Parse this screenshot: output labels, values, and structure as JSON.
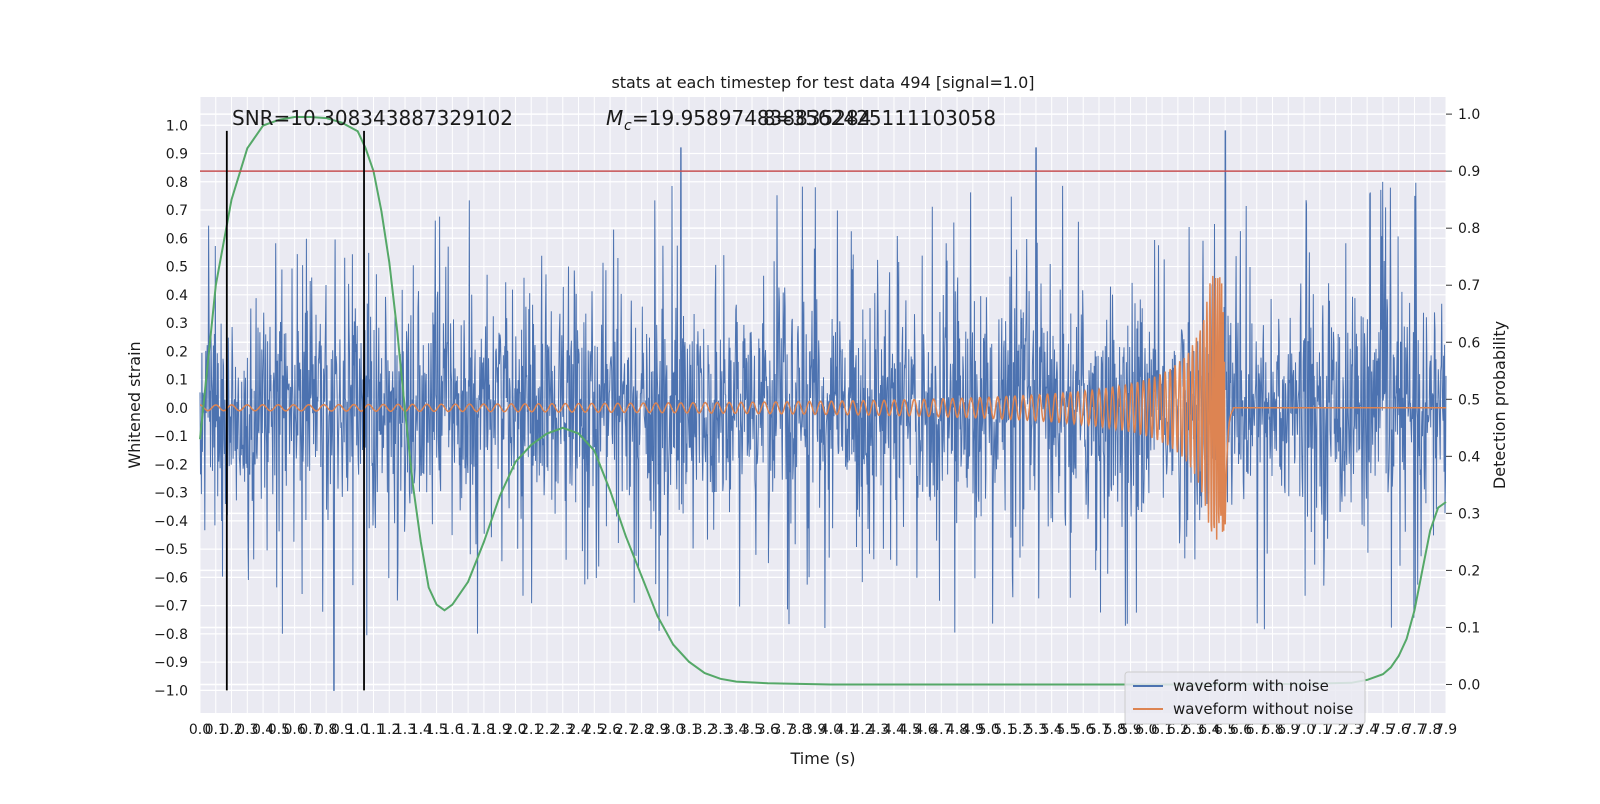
{
  "chart_data": {
    "type": "line",
    "title": "stats at each timestep for test data 494 [signal=1.0]",
    "xlabel": "Time (s)",
    "ylabel": "Whitened strain",
    "y2label": "Detection probability",
    "xlim": [
      0.0,
      7.9
    ],
    "ylim": [
      -1.08,
      1.1
    ],
    "y2lim": [
      -0.05,
      1.03
    ],
    "xticks": [
      "0.0",
      "0.1",
      "0.2",
      "0.3",
      "0.4",
      "0.5",
      "0.6",
      "0.7",
      "0.8",
      "0.9",
      "1.0",
      "1.1",
      "1.2",
      "1.3",
      "1.4",
      "1.5",
      "1.6",
      "1.7",
      "1.8",
      "1.9",
      "2.0",
      "2.1",
      "2.2",
      "2.3",
      "2.4",
      "2.5",
      "2.6",
      "2.7",
      "2.8",
      "2.9",
      "3.0",
      "3.1",
      "3.2",
      "3.3",
      "3.4",
      "3.5",
      "3.6",
      "3.7",
      "3.8",
      "3.9",
      "4.0",
      "4.1",
      "4.2",
      "4.3",
      "4.4",
      "4.5",
      "4.6",
      "4.7",
      "4.8",
      "4.9",
      "5.0",
      "5.1",
      "5.2",
      "5.3",
      "5.4",
      "5.5",
      "5.6",
      "5.7",
      "5.8",
      "5.9",
      "6.0",
      "6.1",
      "6.2",
      "6.3",
      "6.4",
      "6.5",
      "6.6",
      "6.7",
      "6.8",
      "6.9",
      "7.0",
      "7.1",
      "7.2",
      "7.3",
      "7.4",
      "7.5",
      "7.6",
      "7.7",
      "7.8",
      "7.9"
    ],
    "yticks": [
      "1.0",
      "0.9",
      "0.8",
      "0.7",
      "0.6",
      "0.5",
      "0.4",
      "0.3",
      "0.2",
      "0.1",
      "0.0",
      "−0.1",
      "−0.2",
      "−0.3",
      "−0.4",
      "−0.5",
      "−0.6",
      "−0.7",
      "−0.8",
      "−0.9",
      "−1.0"
    ],
    "yticks_values": [
      1.0,
      0.9,
      0.8,
      0.7,
      0.6,
      0.5,
      0.4,
      0.3,
      0.2,
      0.1,
      0.0,
      -0.1,
      -0.2,
      -0.3,
      -0.4,
      -0.5,
      -0.6,
      -0.7,
      -0.8,
      -0.9,
      -1.0
    ],
    "y2ticks": [
      "1.0",
      "0.9",
      "0.8",
      "0.7",
      "0.6",
      "0.5",
      "0.4",
      "0.3",
      "0.2",
      "0.1",
      "0.0"
    ],
    "y2ticks_values": [
      1.0,
      0.9,
      0.8,
      0.7,
      0.6,
      0.5,
      0.4,
      0.3,
      0.2,
      0.1,
      0.0
    ],
    "grid": true,
    "legend_position": "bottom-right",
    "legend": [
      {
        "label": "waveform with noise",
        "color": "#4c72b0"
      },
      {
        "label": "waveform without noise",
        "color": "#dd8452"
      }
    ],
    "annotations": {
      "snr": "SNR=10.308343887329102",
      "mc": "=19.958974838835284",
      "mc_symbol": "M",
      "mc_sub": "c",
      "extra": "8=3562425111103058"
    },
    "series": [
      {
        "name": "waveform with noise",
        "color": "#4c72b0",
        "kind": "noise",
        "amplitude_typical": 0.38,
        "amplitude_peak_range": [
          -1.0,
          0.98
        ],
        "notable_peaks": [
          [
            0.85,
            -1.0
          ],
          [
            3.05,
            0.92
          ],
          [
            5.3,
            0.92
          ],
          [
            6.5,
            0.98
          ]
        ]
      },
      {
        "name": "waveform without noise",
        "color": "#dd8452",
        "kind": "chirp",
        "t_merger": 6.5,
        "peak_amplitude": 0.47,
        "min_amplitude": -0.42,
        "base_amplitude": 0.01
      },
      {
        "color": "#55a868",
        "axis": "right",
        "x": [
          0.0,
          0.1,
          0.2,
          0.3,
          0.4,
          0.5,
          0.6,
          0.7,
          0.8,
          0.9,
          1.0,
          1.05,
          1.1,
          1.15,
          1.2,
          1.25,
          1.3,
          1.35,
          1.4,
          1.45,
          1.5,
          1.55,
          1.6,
          1.7,
          1.8,
          1.9,
          2.0,
          2.1,
          2.2,
          2.3,
          2.4,
          2.5,
          2.6,
          2.7,
          2.8,
          2.9,
          3.0,
          3.1,
          3.2,
          3.3,
          3.4,
          3.6,
          3.8,
          4.0,
          4.5,
          5.0,
          5.5,
          6.0,
          6.5,
          7.0,
          7.3,
          7.4,
          7.5,
          7.55,
          7.6,
          7.65,
          7.7,
          7.75,
          7.8,
          7.85,
          7.9
        ],
        "values": [
          0.43,
          0.7,
          0.85,
          0.94,
          0.98,
          0.99,
          0.995,
          0.995,
          0.993,
          0.985,
          0.97,
          0.94,
          0.9,
          0.83,
          0.74,
          0.62,
          0.48,
          0.35,
          0.25,
          0.17,
          0.14,
          0.13,
          0.14,
          0.18,
          0.25,
          0.33,
          0.39,
          0.42,
          0.44,
          0.45,
          0.44,
          0.41,
          0.34,
          0.26,
          0.19,
          0.12,
          0.07,
          0.04,
          0.02,
          0.01,
          0.005,
          0.002,
          0.001,
          0.0,
          0.0,
          0.0,
          0.0,
          0.0,
          0.0,
          0.001,
          0.003,
          0.008,
          0.018,
          0.03,
          0.05,
          0.08,
          0.13,
          0.2,
          0.27,
          0.31,
          0.32
        ]
      }
    ],
    "vertical_lines": [
      {
        "x": 0.17,
        "color": "#000000",
        "y_range": [
          -1.0,
          0.98
        ]
      },
      {
        "x": 1.04,
        "color": "#000000",
        "y_range": [
          -1.0,
          0.98
        ]
      }
    ],
    "threshold_line": {
      "y2": 0.9,
      "color": "#c44e52"
    }
  }
}
